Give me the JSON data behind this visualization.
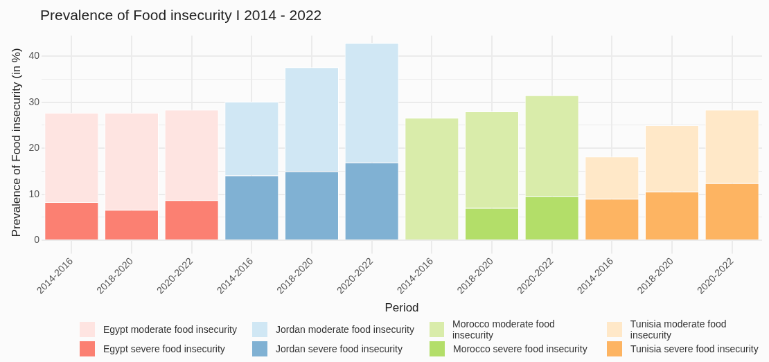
{
  "chart_data": {
    "type": "bar",
    "title": "Prevalence of Food insecurity I 2014 - 2022",
    "xlabel": "Period",
    "ylabel": "Prevalence of Food insecurity (in %)",
    "categories": [
      "2014-2016",
      "2018-2020",
      "2020-2022",
      "2014-2016",
      "2018-2020",
      "2020-2022",
      "2014-2016",
      "2018-2020",
      "2020-2022",
      "2014-2016",
      "2018-2020",
      "2020-2022"
    ],
    "stacked": true,
    "series": [
      {
        "name": "Egypt severe food insecurity",
        "color": "#fb8072",
        "values": [
          8.3,
          6.6,
          8.7,
          null,
          null,
          null,
          null,
          null,
          null,
          null,
          null,
          null
        ]
      },
      {
        "name": "Egypt moderate food insecurity",
        "color": "#fee4e1",
        "values": [
          19.4,
          21.1,
          19.7,
          null,
          null,
          null,
          null,
          null,
          null,
          null,
          null,
          null
        ]
      },
      {
        "name": "Jordan severe food insecurity",
        "color": "#80b1d3",
        "values": [
          null,
          null,
          null,
          14.1,
          15.0,
          16.9,
          null,
          null,
          null,
          null,
          null,
          null
        ]
      },
      {
        "name": "Jordan moderate food insecurity",
        "color": "#d0e7f4",
        "values": [
          null,
          null,
          null,
          16.0,
          22.6,
          26.0,
          null,
          null,
          null,
          null,
          null,
          null
        ]
      },
      {
        "name": "Morocco severe food insecurity",
        "color": "#b3de69",
        "values": [
          null,
          null,
          null,
          null,
          null,
          null,
          null,
          7.0,
          9.6,
          null,
          null,
          null
        ]
      },
      {
        "name": "Morocco moderate food insecurity",
        "color": "#d9ecaa",
        "values": [
          null,
          null,
          null,
          null,
          null,
          null,
          26.6,
          21.0,
          21.9,
          null,
          null,
          null
        ]
      },
      {
        "name": "Tunisia severe food insecurity",
        "color": "#fdb462",
        "values": [
          null,
          null,
          null,
          null,
          null,
          null,
          null,
          null,
          null,
          9.0,
          10.6,
          12.4
        ]
      },
      {
        "name": "Tunisia moderate food insecurity",
        "color": "#ffe8c8",
        "values": [
          null,
          null,
          null,
          null,
          null,
          null,
          null,
          null,
          null,
          9.2,
          14.4,
          16.0
        ]
      }
    ],
    "ylim": [
      -2,
      44.5
    ],
    "yticks": [
      0,
      {
        "value": 5,
        "label": null
      },
      10,
      {
        "value": 15,
        "label": null
      },
      20,
      {
        "value": 25,
        "label": null
      },
      30,
      {
        "value": 35,
        "label": null
      },
      40
    ],
    "grid": true,
    "legend": "bottom"
  }
}
